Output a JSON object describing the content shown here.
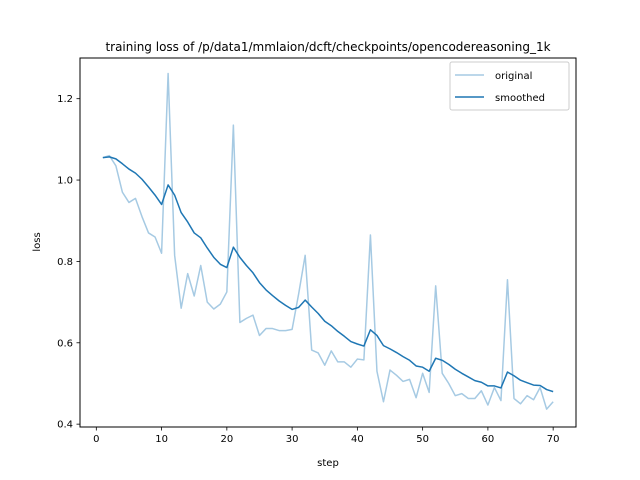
{
  "chart_data": {
    "type": "line",
    "title": "training loss of /p/data1/mmlaion/dcft/checkpoints/opencodereasoning_1k",
    "xlabel": "step",
    "ylabel": "loss",
    "xlim": [
      -2.5,
      73.5
    ],
    "ylim": [
      0.393,
      1.3
    ],
    "xticks": [
      0,
      10,
      20,
      30,
      40,
      50,
      60,
      70
    ],
    "xtick_labels": [
      "0",
      "10",
      "20",
      "30",
      "40",
      "50",
      "60",
      "70"
    ],
    "yticks": [
      0.4,
      0.6,
      0.8,
      1.0,
      1.2
    ],
    "ytick_labels": [
      "0.4",
      "0.6",
      "0.8",
      "1.0",
      "1.2"
    ],
    "grid": false,
    "legend_position": "top-right",
    "x": [
      1,
      2,
      3,
      4,
      5,
      6,
      7,
      8,
      9,
      10,
      11,
      12,
      13,
      14,
      15,
      16,
      17,
      18,
      19,
      20,
      21,
      22,
      23,
      24,
      25,
      26,
      27,
      28,
      29,
      30,
      31,
      32,
      33,
      34,
      35,
      36,
      37,
      38,
      39,
      40,
      41,
      42,
      43,
      44,
      45,
      46,
      47,
      48,
      49,
      50,
      51,
      52,
      53,
      54,
      55,
      56,
      57,
      58,
      59,
      60,
      61,
      62,
      63,
      64,
      65,
      66,
      67,
      68,
      69,
      70
    ],
    "series": [
      {
        "name": "original",
        "color": "#a6cae3",
        "values": [
          1.055,
          1.06,
          1.035,
          0.97,
          0.945,
          0.955,
          0.91,
          0.87,
          0.86,
          0.82,
          1.262,
          0.815,
          0.685,
          0.77,
          0.715,
          0.79,
          0.7,
          0.683,
          0.695,
          0.725,
          1.135,
          0.65,
          0.66,
          0.668,
          0.618,
          0.635,
          0.635,
          0.63,
          0.63,
          0.633,
          0.72,
          0.815,
          0.582,
          0.575,
          0.545,
          0.58,
          0.553,
          0.553,
          0.54,
          0.56,
          0.558,
          0.865,
          0.53,
          0.455,
          0.533,
          0.52,
          0.505,
          0.51,
          0.465,
          0.525,
          0.478,
          0.74,
          0.525,
          0.5,
          0.47,
          0.475,
          0.463,
          0.463,
          0.482,
          0.447,
          0.49,
          0.458,
          0.755,
          0.463,
          0.45,
          0.47,
          0.46,
          0.49,
          0.437,
          0.455
        ]
      },
      {
        "name": "smoothed",
        "color": "#1f77b4",
        "values": [
          1.055,
          1.057,
          1.052,
          1.04,
          1.027,
          1.017,
          1.002,
          0.983,
          0.963,
          0.94,
          0.988,
          0.963,
          0.92,
          0.897,
          0.87,
          0.858,
          0.833,
          0.81,
          0.793,
          0.785,
          0.835,
          0.81,
          0.79,
          0.772,
          0.748,
          0.73,
          0.716,
          0.703,
          0.692,
          0.682,
          0.687,
          0.705,
          0.688,
          0.672,
          0.653,
          0.642,
          0.628,
          0.616,
          0.603,
          0.597,
          0.592,
          0.632,
          0.618,
          0.593,
          0.585,
          0.576,
          0.566,
          0.557,
          0.543,
          0.54,
          0.53,
          0.562,
          0.557,
          0.547,
          0.535,
          0.525,
          0.516,
          0.507,
          0.503,
          0.494,
          0.494,
          0.489,
          0.528,
          0.519,
          0.508,
          0.502,
          0.496,
          0.495,
          0.485,
          0.48
        ]
      }
    ]
  }
}
